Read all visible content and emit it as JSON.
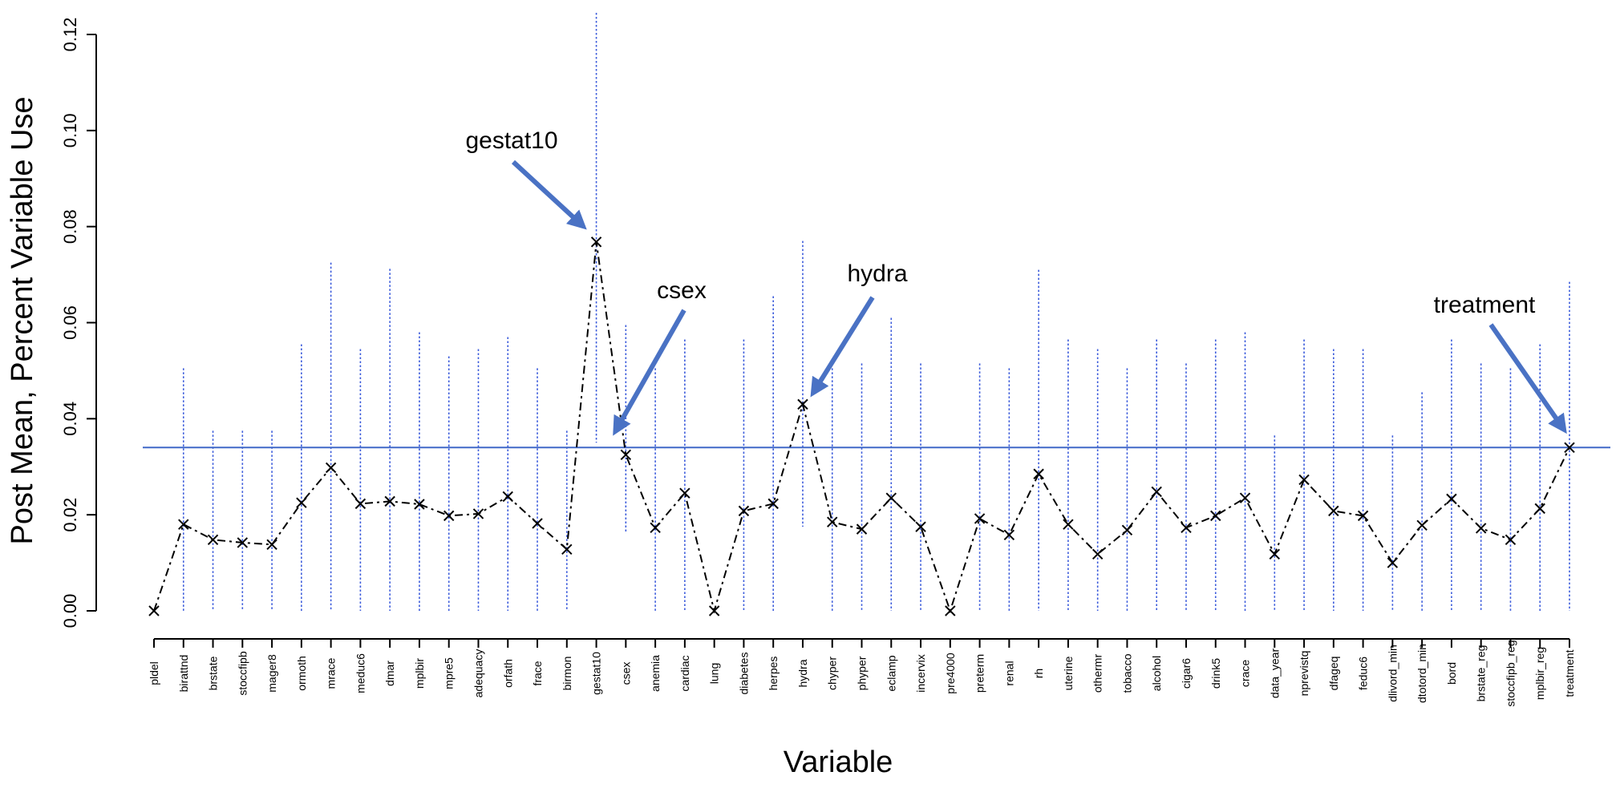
{
  "chart_data": {
    "type": "line",
    "title": "",
    "xlabel": "Variable",
    "ylabel": "Post Mean, Percent Variable Use",
    "ylim": [
      0,
      0.12
    ],
    "yticks": [
      "0.00",
      "0.02",
      "0.04",
      "0.06",
      "0.08",
      "0.10",
      "0.12"
    ],
    "grid": false,
    "legend": "none",
    "reference_line": 0.034,
    "colors": {
      "points": "#000000",
      "interval": "#3b5bdb",
      "reference": "#4169c8",
      "arrow": "#4a72c4"
    },
    "categories": [
      "pldel",
      "birattnd",
      "brstate",
      "stoccfipb",
      "mager8",
      "ormoth",
      "mrace",
      "meduc6",
      "dmar",
      "mplbir",
      "mpre5",
      "adequacy",
      "orfath",
      "frace",
      "birmon",
      "gestat10",
      "csex",
      "anemia",
      "cardiac",
      "lung",
      "diabetes",
      "herpes",
      "hydra",
      "chyper",
      "phyper",
      "eclamp",
      "incervix",
      "pre4000",
      "preterm",
      "renal",
      "rh",
      "uterine",
      "othermr",
      "tobacco",
      "alcohol",
      "cigar6",
      "drink5",
      "crace",
      "data_year",
      "nprevistq",
      "dfageq",
      "feduc6",
      "dlivord_min",
      "dtotord_min",
      "bord",
      "brstate_reg",
      "stoccfipb_reg",
      "mplbir_reg",
      "treatment"
    ],
    "values": [
      0.0,
      0.018,
      0.0148,
      0.0142,
      0.0138,
      0.0225,
      0.0298,
      0.0223,
      0.0228,
      0.0222,
      0.0198,
      0.0202,
      0.0238,
      0.0182,
      0.0128,
      0.0768,
      0.0325,
      0.0173,
      0.0245,
      0.0,
      0.0208,
      0.0223,
      0.043,
      0.0185,
      0.017,
      0.0235,
      0.0175,
      0.0,
      0.0192,
      0.0158,
      0.0285,
      0.018,
      0.0118,
      0.0168,
      0.0248,
      0.0173,
      0.0198,
      0.0235,
      0.0118,
      0.0273,
      0.0208,
      0.0198,
      0.01,
      0.0178,
      0.0233,
      0.0172,
      0.0148,
      0.0213,
      0.034
    ],
    "upper": [
      null,
      0.0505,
      0.0375,
      0.0375,
      0.0375,
      0.0555,
      0.0725,
      0.0545,
      0.0712,
      0.058,
      0.053,
      0.0545,
      0.057,
      0.0505,
      0.0375,
      0.1245,
      0.0595,
      0.0505,
      0.0565,
      null,
      0.0565,
      0.0655,
      0.077,
      0.0505,
      0.0515,
      0.061,
      0.0515,
      null,
      0.0515,
      0.0505,
      0.071,
      0.0565,
      0.0545,
      0.0505,
      0.0565,
      0.0515,
      0.0565,
      0.058,
      0.0365,
      0.0565,
      0.0545,
      0.0545,
      0.0365,
      0.0455,
      0.0565,
      0.0515,
      0.0505,
      0.0555,
      0.0685
    ],
    "lower": [
      null,
      0,
      0,
      0,
      0,
      0,
      0,
      0,
      0,
      0,
      0,
      0,
      0,
      0,
      0,
      0.035,
      0.0165,
      0,
      0,
      null,
      0,
      0,
      0.0175,
      0,
      0,
      0,
      0,
      null,
      0,
      0,
      0,
      0,
      0,
      0,
      0,
      0,
      0,
      0,
      0,
      0,
      0,
      0,
      0,
      0,
      0,
      0,
      0,
      0,
      0
    ],
    "annotations": [
      {
        "label": "gestat10",
        "target": "gestat10"
      },
      {
        "label": "csex",
        "target": "csex"
      },
      {
        "label": "hydra",
        "target": "hydra"
      },
      {
        "label": "treatment",
        "target": "treatment"
      }
    ]
  }
}
